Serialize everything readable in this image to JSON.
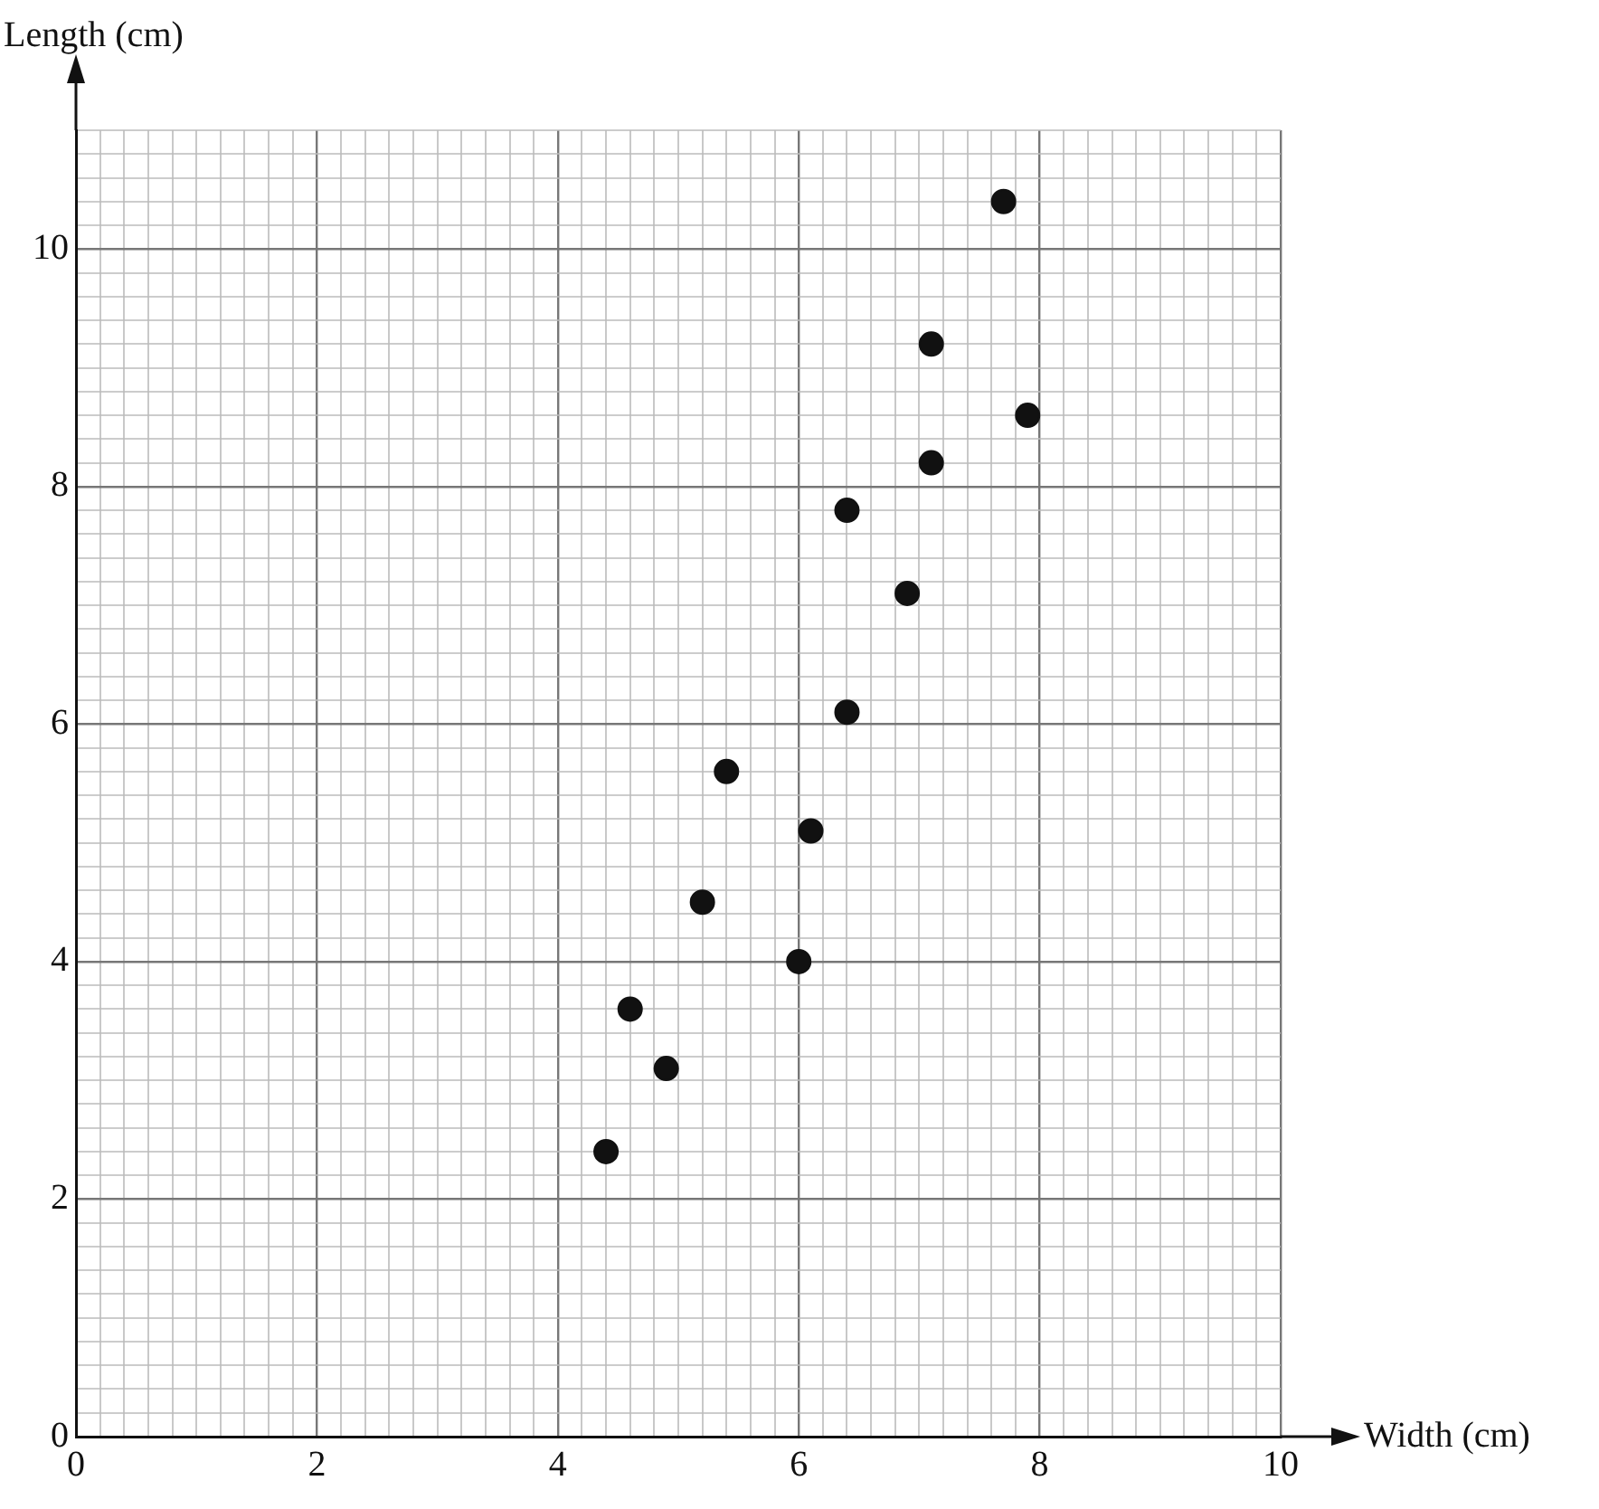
{
  "chart_data": {
    "type": "scatter",
    "xlabel": "Width (cm)",
    "ylabel": "Length (cm)",
    "series": [
      {
        "color": "#111111",
        "x": [
          4.4,
          4.6,
          4.9,
          5.2,
          5.4,
          6.0,
          6.1,
          6.4,
          6.4,
          6.9,
          7.1,
          7.1,
          7.9,
          7.7
        ],
        "values": [
          2.4,
          3.6,
          3.1,
          4.5,
          5.6,
          4.0,
          5.1,
          6.1,
          7.8,
          7.1,
          8.2,
          9.2,
          8.6,
          10.4
        ]
      }
    ],
    "marker": "circle",
    "grid": true,
    "legend": false,
    "xlim": [
      0,
      10
    ],
    "ylim": [
      0,
      11
    ],
    "xticks": [
      0,
      {
        "value": 0.2,
        "label": null
      },
      {
        "value": 0.4,
        "label": null
      },
      {
        "value": 0.6,
        "label": null
      },
      {
        "value": 0.8,
        "label": null
      },
      {
        "value": 1,
        "label": null
      },
      {
        "value": 1.2,
        "label": null
      },
      {
        "value": 1.4,
        "label": null
      },
      {
        "value": 1.6,
        "label": null
      },
      {
        "value": 1.8,
        "label": null
      },
      2,
      {
        "value": 2.2,
        "label": null
      },
      {
        "value": 2.4,
        "label": null
      },
      {
        "value": 2.6,
        "label": null
      },
      {
        "value": 2.8,
        "label": null
      },
      {
        "value": 3,
        "label": null
      },
      {
        "value": 3.2,
        "label": null
      },
      {
        "value": 3.4,
        "label": null
      },
      {
        "value": 3.6,
        "label": null
      },
      {
        "value": 3.8,
        "label": null
      },
      4,
      {
        "value": 4.2,
        "label": null
      },
      {
        "value": 4.4,
        "label": null
      },
      {
        "value": 4.6,
        "label": null
      },
      {
        "value": 4.8,
        "label": null
      },
      {
        "value": 5,
        "label": null
      },
      {
        "value": 5.2,
        "label": null
      },
      {
        "value": 5.4,
        "label": null
      },
      {
        "value": 5.6,
        "label": null
      },
      {
        "value": 5.8,
        "label": null
      },
      6,
      {
        "value": 6.2,
        "label": null
      },
      {
        "value": 6.4,
        "label": null
      },
      {
        "value": 6.6,
        "label": null
      },
      {
        "value": 6.8,
        "label": null
      },
      {
        "value": 7,
        "label": null
      },
      {
        "value": 7.2,
        "label": null
      },
      {
        "value": 7.4,
        "label": null
      },
      {
        "value": 7.6,
        "label": null
      },
      {
        "value": 7.8,
        "label": null
      },
      8,
      {
        "value": 8.2,
        "label": null
      },
      {
        "value": 8.4,
        "label": null
      },
      {
        "value": 8.6,
        "label": null
      },
      {
        "value": 8.8,
        "label": null
      },
      {
        "value": 9,
        "label": null
      },
      {
        "value": 9.2,
        "label": null
      },
      {
        "value": 9.4,
        "label": null
      },
      {
        "value": 9.6,
        "label": null
      },
      {
        "value": 9.8,
        "label": null
      },
      10
    ],
    "yticks": [
      0,
      {
        "value": 0.2,
        "label": null
      },
      {
        "value": 0.4,
        "label": null
      },
      {
        "value": 0.6,
        "label": null
      },
      {
        "value": 0.8,
        "label": null
      },
      {
        "value": 1,
        "label": null
      },
      {
        "value": 1.2,
        "label": null
      },
      {
        "value": 1.4,
        "label": null
      },
      {
        "value": 1.6,
        "label": null
      },
      {
        "value": 1.8,
        "label": null
      },
      2,
      {
        "value": 2.2,
        "label": null
      },
      {
        "value": 2.4,
        "label": null
      },
      {
        "value": 2.6,
        "label": null
      },
      {
        "value": 2.8,
        "label": null
      },
      {
        "value": 3,
        "label": null
      },
      {
        "value": 3.2,
        "label": null
      },
      {
        "value": 3.4,
        "label": null
      },
      {
        "value": 3.6,
        "label": null
      },
      {
        "value": 3.8,
        "label": null
      },
      4,
      {
        "value": 4.2,
        "label": null
      },
      {
        "value": 4.4,
        "label": null
      },
      {
        "value": 4.6,
        "label": null
      },
      {
        "value": 4.8,
        "label": null
      },
      {
        "value": 5,
        "label": null
      },
      {
        "value": 5.2,
        "label": null
      },
      {
        "value": 5.4,
        "label": null
      },
      {
        "value": 5.6,
        "label": null
      },
      {
        "value": 5.8,
        "label": null
      },
      6,
      {
        "value": 6.2,
        "label": null
      },
      {
        "value": 6.4,
        "label": null
      },
      {
        "value": 6.6,
        "label": null
      },
      {
        "value": 6.8,
        "label": null
      },
      {
        "value": 7,
        "label": null
      },
      {
        "value": 7.2,
        "label": null
      },
      {
        "value": 7.4,
        "label": null
      },
      {
        "value": 7.6,
        "label": null
      },
      {
        "value": 7.8,
        "label": null
      },
      8,
      {
        "value": 8.2,
        "label": null
      },
      {
        "value": 8.4,
        "label": null
      },
      {
        "value": 8.6,
        "label": null
      },
      {
        "value": 8.8,
        "label": null
      },
      {
        "value": 9,
        "label": null
      },
      {
        "value": 9.2,
        "label": null
      },
      {
        "value": 9.4,
        "label": null
      },
      {
        "value": 9.6,
        "label": null
      },
      {
        "value": 9.8,
        "label": null
      },
      10,
      {
        "value": 10.2,
        "label": null
      },
      {
        "value": 10.4,
        "label": null
      },
      {
        "value": 10.6,
        "label": null
      },
      {
        "value": 10.8,
        "label": null
      },
      {
        "value": 11,
        "label": null
      }
    ]
  }
}
